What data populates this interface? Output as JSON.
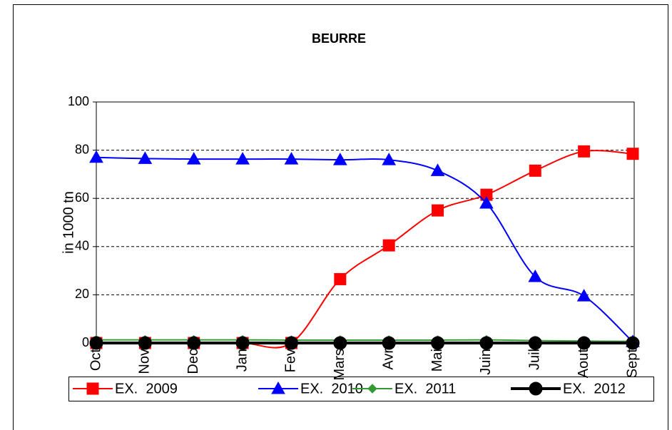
{
  "chart_data": {
    "type": "line",
    "title": "BEURRE",
    "y_label": "in 1000 tn",
    "categories": [
      "Oct",
      "Nov",
      "Dec",
      "Jan",
      "Fev",
      "Mars",
      "Avr",
      "Mai",
      "Juin",
      "Juil",
      "Aout",
      "Sept"
    ],
    "series": [
      {
        "name": "EX.  2009",
        "color": "#ff0000",
        "marker": "square",
        "values": [
          0,
          0,
          0,
          0,
          0,
          26.5,
          40.5,
          55,
          61.5,
          71.5,
          79.5,
          78.5
        ]
      },
      {
        "name": "EX.  2010",
        "color": "#0000ff",
        "marker": "triangle",
        "values": [
          77,
          76.5,
          76.3,
          76.3,
          76.3,
          76,
          76,
          71.5,
          58,
          27.5,
          19.5,
          0.5
        ]
      },
      {
        "name": "EX.  2011",
        "color": "#339933",
        "marker": "diamond",
        "values": [
          1.3,
          1.3,
          1.3,
          1.3,
          1.2,
          1.2,
          1.2,
          1.2,
          1.3,
          1,
          0.8,
          0.7
        ]
      },
      {
        "name": "EX.  2012",
        "color": "#000000",
        "marker": "circle",
        "values": [
          0,
          0,
          0,
          0,
          0,
          0,
          0,
          0,
          0,
          0,
          0,
          0
        ]
      }
    ],
    "ylim": [
      0,
      100
    ],
    "yticks": [
      0,
      20,
      40,
      60,
      80,
      100
    ],
    "grid": true,
    "smooth": true,
    "legend": "bottom"
  }
}
